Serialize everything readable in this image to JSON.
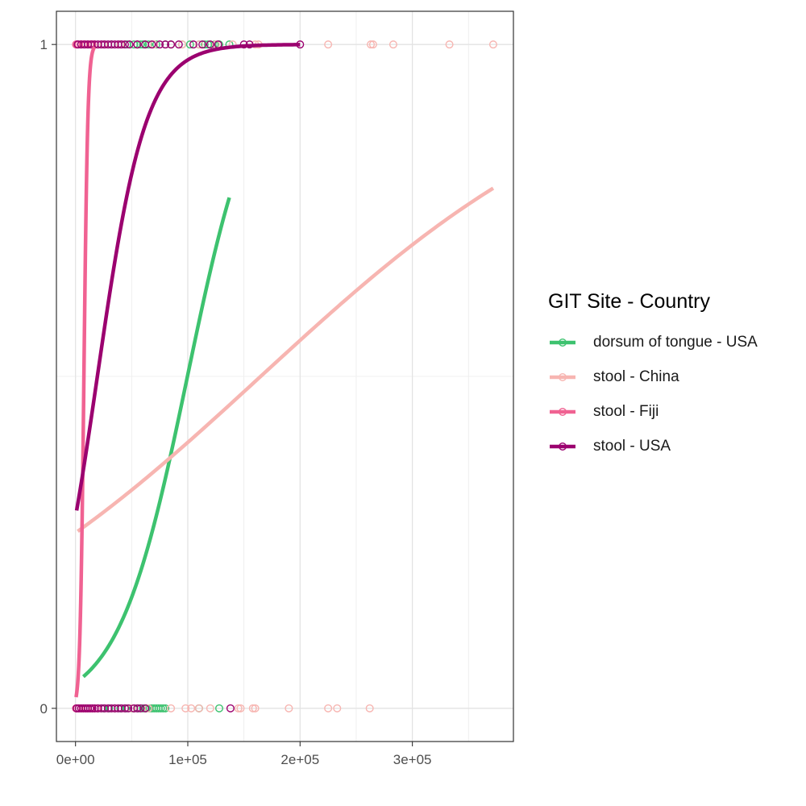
{
  "chart_data": {
    "type": "scatter",
    "title": "",
    "xlabel": "",
    "ylabel": "",
    "xlim": [
      -17000,
      390000
    ],
    "ylim": [
      -0.05,
      1.05
    ],
    "x_ticks": [
      0,
      100000,
      200000,
      300000
    ],
    "x_tick_labels": [
      "0e+00",
      "1e+05",
      "2e+05",
      "3e+05"
    ],
    "x_minor_ticks": [
      50000,
      150000,
      250000,
      350000
    ],
    "y_ticks": [
      0,
      1
    ],
    "y_tick_labels": [
      "0",
      "1"
    ],
    "y_minor_ticks": [
      0.5
    ],
    "grid": true,
    "legend": {
      "title": "GIT Site - Country",
      "position": "right"
    },
    "series": [
      {
        "name": "dorsum of tongue - USA",
        "color": "#3dc26f",
        "points_y1": [
          25000,
          32000,
          40000,
          46000,
          52000,
          55000,
          58000,
          60000,
          62000,
          65000,
          72000,
          80000,
          85000,
          95000,
          102000,
          110000,
          115000,
          118000,
          124000,
          128000,
          137000
        ],
        "points_y0": [
          20000,
          25000,
          30000,
          35000,
          40000,
          45000,
          50000,
          52000,
          56000,
          60000,
          63000,
          66000,
          68000,
          70000,
          72000,
          74000,
          76000,
          78000,
          80000,
          110000,
          128000
        ],
        "curve": {
          "intercept": -3.22,
          "slope": 3.23e-05,
          "x_range": [
            7000,
            137000
          ]
        }
      },
      {
        "name": "stool - China",
        "color": "#f7b5b1",
        "points_y1": [
          5000,
          15000,
          25000,
          40000,
          55000,
          70000,
          85000,
          95000,
          110000,
          125000,
          140000,
          160000,
          163000,
          225000,
          263000,
          265000,
          283000,
          333000,
          372000
        ],
        "points_y0": [
          10000,
          20000,
          35000,
          50000,
          65000,
          85000,
          98000,
          103000,
          110000,
          120000,
          145000,
          147000,
          158000,
          160000,
          190000,
          225000,
          233000,
          262000
        ],
        "curve": {
          "intercept": -1.024,
          "slope": 6.21e-06,
          "x_range": [
            2000,
            372000
          ]
        }
      },
      {
        "name": "stool - Fiji",
        "color": "#f06292",
        "points_y1": [
          500,
          1500,
          3000,
          5000,
          7000,
          9000,
          11000,
          13000,
          15000,
          17000
        ],
        "points_y0": [
          500,
          1500,
          3000,
          5000,
          7000,
          9000,
          11000,
          13000,
          15000,
          17000,
          19000
        ],
        "curve": {
          "intercept": -4.36,
          "slope": 0.000583,
          "x_range": [
            500,
            17000
          ]
        }
      },
      {
        "name": "stool - USA",
        "color": "#9b006f",
        "points_y1": [
          2000,
          5000,
          8000,
          11000,
          14000,
          17000,
          20000,
          23000,
          26000,
          29000,
          32000,
          35000,
          38000,
          41000,
          44000,
          48000,
          55000,
          62000,
          68000,
          75000,
          80000,
          85000,
          92000,
          105000,
          113000,
          120000,
          127000,
          150000,
          155000,
          200000
        ],
        "points_y0": [
          1000,
          3000,
          5000,
          7000,
          9000,
          11000,
          13000,
          15000,
          17000,
          20000,
          23000,
          26000,
          29000,
          32000,
          35000,
          38000,
          41000,
          44000,
          47000,
          52000,
          55000,
          58000,
          62000,
          138000
        ],
        "curve": {
          "intercept": -0.903,
          "slope": 4.64e-05,
          "x_range": [
            1000,
            200000
          ]
        }
      }
    ]
  }
}
